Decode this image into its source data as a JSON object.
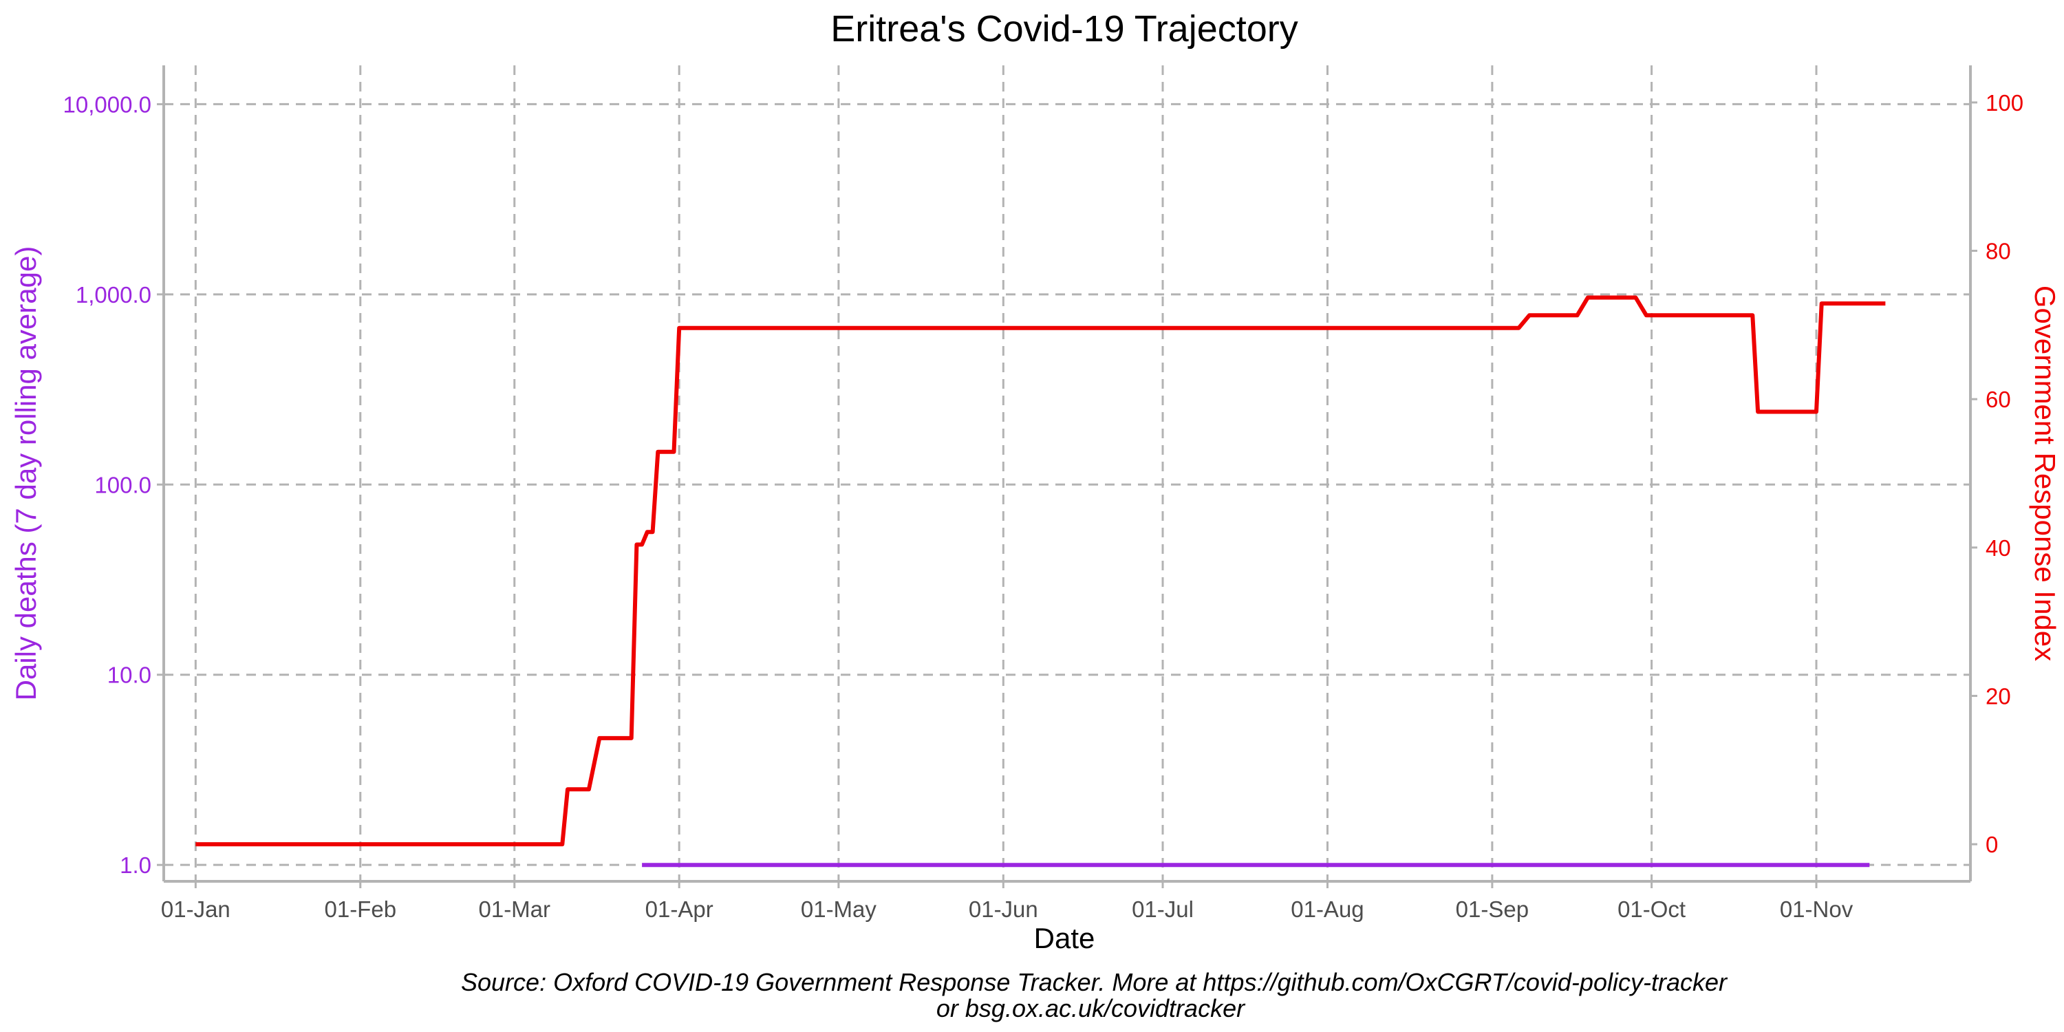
{
  "chart_data": {
    "type": "line",
    "title": "Eritrea's Covid-19 Trajectory",
    "xlabel": "Date",
    "ylabel_left": "Daily deaths (7 day rolling average)",
    "ylabel_right": "Government Response Index",
    "caption_lines": [
      "Source: Oxford COVID-19 Government Response Tracker. More at https://github.com/OxCGRT/covid-policy-tracker",
      "or bsg.ox.ac.uk/covidtracker"
    ],
    "x_range": [
      "2019-12-26",
      "2020-11-30"
    ],
    "x_ticks": [
      {
        "label": "01-Jan",
        "date": "2020-01-01"
      },
      {
        "label": "01-Feb",
        "date": "2020-02-01"
      },
      {
        "label": "01-Mar",
        "date": "2020-03-01"
      },
      {
        "label": "01-Apr",
        "date": "2020-04-01"
      },
      {
        "label": "01-May",
        "date": "2020-05-01"
      },
      {
        "label": "01-Jun",
        "date": "2020-06-01"
      },
      {
        "label": "01-Jul",
        "date": "2020-07-01"
      },
      {
        "label": "01-Aug",
        "date": "2020-08-01"
      },
      {
        "label": "01-Sep",
        "date": "2020-09-01"
      },
      {
        "label": "01-Oct",
        "date": "2020-10-01"
      },
      {
        "label": "01-Nov",
        "date": "2020-11-01"
      }
    ],
    "y_left": {
      "scale": "log",
      "range": [
        0.82,
        16000
      ],
      "ticks": [
        {
          "label": "1.0",
          "value": 1
        },
        {
          "label": "10.0",
          "value": 10
        },
        {
          "label": "100.0",
          "value": 100
        },
        {
          "label": "1,000.0",
          "value": 1000
        },
        {
          "label": "10,000.0",
          "value": 10000
        }
      ],
      "color": "#9b26e0"
    },
    "y_right": {
      "scale": "linear",
      "range": [
        -5,
        105
      ],
      "ticks": [
        {
          "label": "0",
          "value": 0
        },
        {
          "label": "20",
          "value": 20
        },
        {
          "label": "40",
          "value": 40
        },
        {
          "label": "60",
          "value": 60
        },
        {
          "label": "80",
          "value": 80
        },
        {
          "label": "100",
          "value": 100
        }
      ],
      "color": "#ee0000"
    },
    "grid": true,
    "series": [
      {
        "axis": "left",
        "color": "#9b26e0",
        "points": [
          {
            "x": "2020-03-25",
            "y": 1
          },
          {
            "x": "2020-11-11",
            "y": 1
          }
        ]
      },
      {
        "axis": "right",
        "color": "#ee0000",
        "points": [
          {
            "x": "2020-01-01",
            "y": 0
          },
          {
            "x": "2020-03-10",
            "y": 0
          },
          {
            "x": "2020-03-11",
            "y": 7.4
          },
          {
            "x": "2020-03-15",
            "y": 7.4
          },
          {
            "x": "2020-03-17",
            "y": 14.3
          },
          {
            "x": "2020-03-23",
            "y": 14.3
          },
          {
            "x": "2020-03-24",
            "y": 40.4
          },
          {
            "x": "2020-03-25",
            "y": 40.4
          },
          {
            "x": "2020-03-26",
            "y": 42.1
          },
          {
            "x": "2020-03-27",
            "y": 42.1
          },
          {
            "x": "2020-03-28",
            "y": 52.9
          },
          {
            "x": "2020-03-31",
            "y": 52.9
          },
          {
            "x": "2020-04-01",
            "y": 69.6
          },
          {
            "x": "2020-09-06",
            "y": 69.6
          },
          {
            "x": "2020-09-08",
            "y": 71.3
          },
          {
            "x": "2020-09-17",
            "y": 71.3
          },
          {
            "x": "2020-09-19",
            "y": 73.7
          },
          {
            "x": "2020-09-28",
            "y": 73.7
          },
          {
            "x": "2020-09-30",
            "y": 71.3
          },
          {
            "x": "2020-10-20",
            "y": 71.3
          },
          {
            "x": "2020-10-21",
            "y": 58.3
          },
          {
            "x": "2020-11-01",
            "y": 58.3
          },
          {
            "x": "2020-11-02",
            "y": 72.9
          },
          {
            "x": "2020-11-14",
            "y": 72.9
          }
        ]
      }
    ]
  }
}
